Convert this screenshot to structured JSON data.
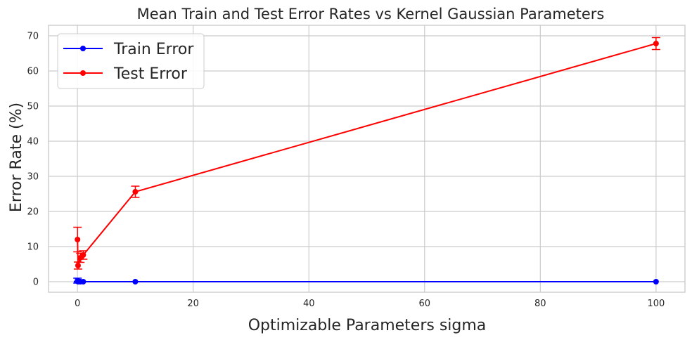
{
  "chart_data": {
    "type": "line",
    "title": "Mean Train and Test Error Rates vs Kernel Gaussian Parameters",
    "xlabel": "Optimizable Parameters sigma",
    "ylabel": "Error Rate (%)",
    "xlim": [
      -5,
      105
    ],
    "ylim": [
      -3,
      73
    ],
    "xticks": [
      0,
      20,
      40,
      60,
      80,
      100
    ],
    "yticks": [
      0,
      10,
      20,
      30,
      40,
      50,
      60,
      70
    ],
    "grid": true,
    "legend_position": "top-left",
    "series": [
      {
        "name": "Train Error",
        "color": "#0000ff",
        "points": [
          {
            "x": 0.01,
            "y": 0.3,
            "err": 0.7
          },
          {
            "x": 0.1,
            "y": 0.0,
            "err": 0.1
          },
          {
            "x": 0.5,
            "y": 0.0,
            "err": 0.05
          },
          {
            "x": 1,
            "y": 0.0,
            "err": 0.0
          },
          {
            "x": 10,
            "y": 0.0,
            "err": 0.0
          },
          {
            "x": 100,
            "y": 0.0,
            "err": 0.0
          }
        ]
      },
      {
        "name": "Test Error",
        "color": "#ff0000",
        "points": [
          {
            "x": 0.01,
            "y": 12.0,
            "err": 3.5
          },
          {
            "x": 0.1,
            "y": 4.6,
            "err": 1.0
          },
          {
            "x": 0.5,
            "y": 6.8,
            "err": 1.3
          },
          {
            "x": 1,
            "y": 7.6,
            "err": 1.2
          },
          {
            "x": 10,
            "y": 25.6,
            "err": 1.6
          },
          {
            "x": 100,
            "y": 67.8,
            "err": 1.7
          }
        ]
      }
    ]
  }
}
